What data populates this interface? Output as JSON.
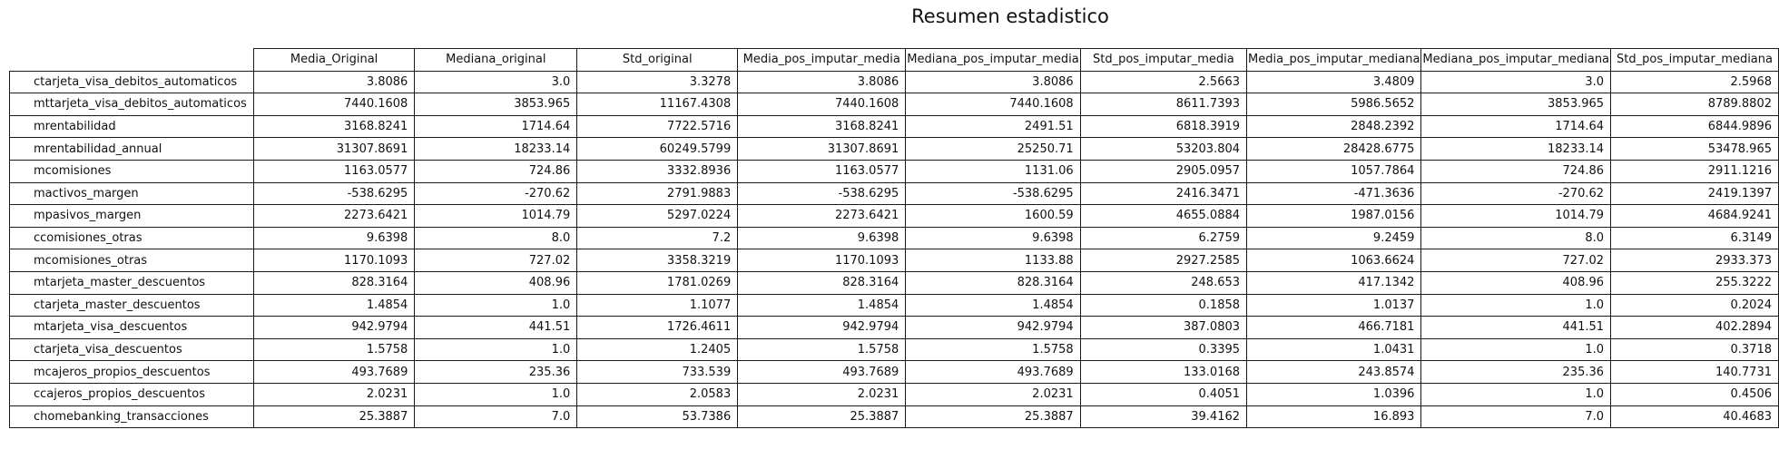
{
  "chart_data": {
    "type": "table",
    "title": "Resumen estadistico",
    "columns": [
      "Media_Original",
      "Mediana_original",
      "Std_original",
      "Media_pos_imputar_media",
      "Mediana_pos_imputar_media",
      "Std_pos_imputar_media",
      "Media_pos_imputar_mediana",
      "Mediana_pos_imputar_mediana",
      "Std_pos_imputar_mediana"
    ],
    "rows": [
      {
        "label": "ctarjeta_visa_debitos_automaticos",
        "values": [
          "3.8086",
          "3.0",
          "3.3278",
          "3.8086",
          "3.8086",
          "2.5663",
          "3.4809",
          "3.0",
          "2.5968"
        ]
      },
      {
        "label": "mttarjeta_visa_debitos_automaticos",
        "values": [
          "7440.1608",
          "3853.965",
          "11167.4308",
          "7440.1608",
          "7440.1608",
          "8611.7393",
          "5986.5652",
          "3853.965",
          "8789.8802"
        ]
      },
      {
        "label": "mrentabilidad",
        "values": [
          "3168.8241",
          "1714.64",
          "7722.5716",
          "3168.8241",
          "2491.51",
          "6818.3919",
          "2848.2392",
          "1714.64",
          "6844.9896"
        ]
      },
      {
        "label": "mrentabilidad_annual",
        "values": [
          "31307.8691",
          "18233.14",
          "60249.5799",
          "31307.8691",
          "25250.71",
          "53203.804",
          "28428.6775",
          "18233.14",
          "53478.965"
        ]
      },
      {
        "label": "mcomisiones",
        "values": [
          "1163.0577",
          "724.86",
          "3332.8936",
          "1163.0577",
          "1131.06",
          "2905.0957",
          "1057.7864",
          "724.86",
          "2911.1216"
        ]
      },
      {
        "label": "mactivos_margen",
        "values": [
          "-538.6295",
          "-270.62",
          "2791.9883",
          "-538.6295",
          "-538.6295",
          "2416.3471",
          "-471.3636",
          "-270.62",
          "2419.1397"
        ]
      },
      {
        "label": "mpasivos_margen",
        "values": [
          "2273.6421",
          "1014.79",
          "5297.0224",
          "2273.6421",
          "1600.59",
          "4655.0884",
          "1987.0156",
          "1014.79",
          "4684.9241"
        ]
      },
      {
        "label": "ccomisiones_otras",
        "values": [
          "9.6398",
          "8.0",
          "7.2",
          "9.6398",
          "9.6398",
          "6.2759",
          "9.2459",
          "8.0",
          "6.3149"
        ]
      },
      {
        "label": "mcomisiones_otras",
        "values": [
          "1170.1093",
          "727.02",
          "3358.3219",
          "1170.1093",
          "1133.88",
          "2927.2585",
          "1063.6624",
          "727.02",
          "2933.373"
        ]
      },
      {
        "label": "mtarjeta_master_descuentos",
        "values": [
          "828.3164",
          "408.96",
          "1781.0269",
          "828.3164",
          "828.3164",
          "248.653",
          "417.1342",
          "408.96",
          "255.3222"
        ]
      },
      {
        "label": "ctarjeta_master_descuentos",
        "values": [
          "1.4854",
          "1.0",
          "1.1077",
          "1.4854",
          "1.4854",
          "0.1858",
          "1.0137",
          "1.0",
          "0.2024"
        ]
      },
      {
        "label": "mtarjeta_visa_descuentos",
        "values": [
          "942.9794",
          "441.51",
          "1726.4611",
          "942.9794",
          "942.9794",
          "387.0803",
          "466.7181",
          "441.51",
          "402.2894"
        ]
      },
      {
        "label": "ctarjeta_visa_descuentos",
        "values": [
          "1.5758",
          "1.0",
          "1.2405",
          "1.5758",
          "1.5758",
          "0.3395",
          "1.0431",
          "1.0",
          "0.3718"
        ]
      },
      {
        "label": "mcajeros_propios_descuentos",
        "values": [
          "493.7689",
          "235.36",
          "733.539",
          "493.7689",
          "493.7689",
          "133.0168",
          "243.8574",
          "235.36",
          "140.7731"
        ]
      },
      {
        "label": "ccajeros_propios_descuentos",
        "values": [
          "2.0231",
          "1.0",
          "2.0583",
          "2.0231",
          "2.0231",
          "0.4051",
          "1.0396",
          "1.0",
          "0.4506"
        ]
      },
      {
        "label": "chomebanking_transacciones",
        "values": [
          "25.3887",
          "7.0",
          "53.7386",
          "25.3887",
          "25.3887",
          "39.4162",
          "16.893",
          "7.0",
          "40.4683"
        ]
      }
    ]
  }
}
